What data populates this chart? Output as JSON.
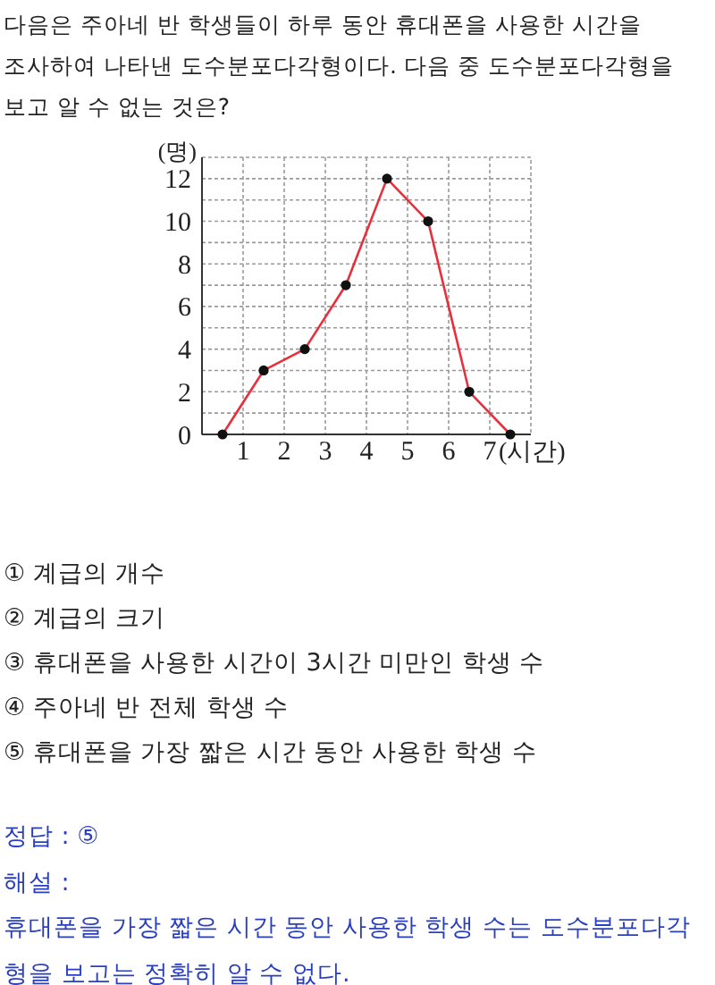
{
  "chart_data": {
    "type": "line",
    "title": "다음은 주아네 반 학생들이 하루 동안 휴대폰을 사용한 시간을 조사하여 나타낸 도수분포다각형이다. 다음 중 도수분포다각형을 보고 알 수 없는 것은?",
    "xlabel": "(시간)",
    "ylabel": "(명)",
    "x": [
      0.5,
      1.5,
      2.5,
      3.5,
      4.5,
      5.5,
      6.5,
      7.5
    ],
    "series": [
      {
        "color": "#e8303c",
        "values": [
          0,
          3,
          4,
          7,
          12,
          10,
          2,
          0
        ]
      }
    ],
    "xlim": [
      0,
      8
    ],
    "ylim": [
      0,
      13
    ],
    "xticks": [
      1,
      2,
      3,
      4,
      5,
      6,
      7
    ],
    "yticks": [
      0,
      {
        "value": 1,
        "label": null
      },
      2,
      {
        "value": 3,
        "label": null
      },
      4,
      {
        "value": 5,
        "label": null
      },
      6,
      {
        "value": 7,
        "label": null
      },
      8,
      {
        "value": 9,
        "label": null
      },
      10,
      {
        "value": 11,
        "label": null
      },
      12
    ],
    "grid": true,
    "marker": "circle",
    "line_style": "solid",
    "annotations": [
      "① 계급의 개수",
      "② 계급의 크기",
      "③ 휴대폰을 사용한 시간이 3시간 미만인 학생 수",
      "④ 주아네 반 전체 학생 수",
      "⑤ 휴대폰을 가장 짧은 시간 동안 사용한 학생 수",
      "정답 : ⑤",
      "해설 :",
      "휴대폰을 가장 짧은 시간 동안 사용한 학생 수는 도수분포다각형을 보고는 정확히 알 수 없다."
    ]
  }
}
